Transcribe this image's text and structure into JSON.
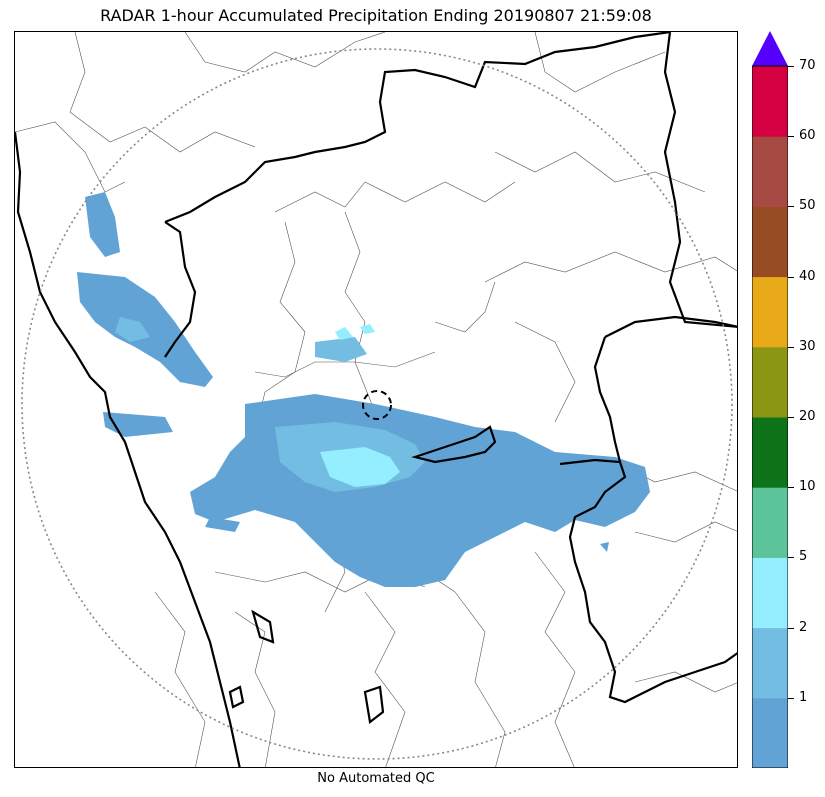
{
  "title": "RADAR 1-hour Accumulated Precipitation Ending 20190807 21:59:08",
  "footer": "No Automated QC",
  "colorbar": {
    "extend_color": "#5500ff",
    "levels": [
      "1",
      "2",
      "5",
      "10",
      "20",
      "30",
      "40",
      "50",
      "60",
      "70"
    ],
    "colors": [
      "#62a3d6",
      "#73bde2",
      "#95eeff",
      "#5cc49a",
      "#0d7419",
      "#8a9614",
      "#e8aa18",
      "#984c24",
      "#a74a44",
      "#d40042"
    ]
  },
  "legend_colors": {
    "light_rain": "#62a3d6",
    "moderate_rain": "#73bde2",
    "heavy_rain": "#95eeff"
  }
}
